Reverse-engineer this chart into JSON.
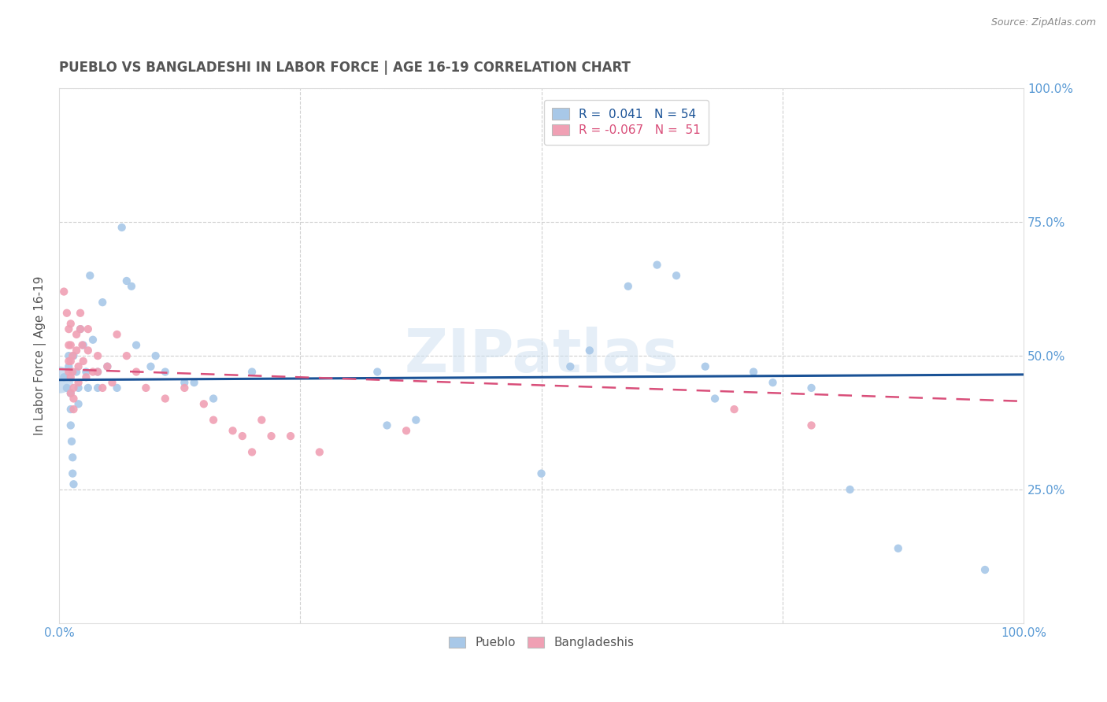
{
  "title": "PUEBLO VS BANGLADESHI IN LABOR FORCE | AGE 16-19 CORRELATION CHART",
  "source": "Source: ZipAtlas.com",
  "ylabel_label": "In Labor Force | Age 16-19",
  "xlim": [
    0.0,
    1.0
  ],
  "ylim": [
    0.0,
    1.0
  ],
  "xticks": [
    0.0,
    0.25,
    0.5,
    0.75,
    1.0
  ],
  "yticks": [
    0.0,
    0.25,
    0.5,
    0.75,
    1.0
  ],
  "xticklabels": [
    "0.0%",
    "",
    "",
    "",
    "100.0%"
  ],
  "right_yticklabels": [
    "",
    "25.0%",
    "50.0%",
    "75.0%",
    "100.0%"
  ],
  "legend_R_pueblo": "0.041",
  "legend_N_pueblo": "54",
  "legend_R_bangladeshi": "-0.067",
  "legend_N_bangladeshi": "51",
  "pueblo_color": "#a8c8e8",
  "bangladeshi_color": "#f0a0b4",
  "pueblo_line_color": "#1a5296",
  "bangladeshi_line_color": "#d94f7a",
  "watermark": "ZIPatlas",
  "background_color": "#ffffff",
  "grid_color": "#cccccc",
  "tick_color": "#5b9bd5",
  "title_color": "#555555",
  "pueblo_line_y0": 0.455,
  "pueblo_line_y1": 0.465,
  "bangla_line_y0": 0.475,
  "bangla_line_y1": 0.415,
  "pueblo_scatter": [
    [
      0.005,
      0.46
    ],
    [
      0.008,
      0.44
    ],
    [
      0.01,
      0.5
    ],
    [
      0.01,
      0.48
    ],
    [
      0.012,
      0.43
    ],
    [
      0.012,
      0.4
    ],
    [
      0.012,
      0.37
    ],
    [
      0.013,
      0.34
    ],
    [
      0.014,
      0.31
    ],
    [
      0.014,
      0.28
    ],
    [
      0.015,
      0.26
    ],
    [
      0.015,
      0.5
    ],
    [
      0.018,
      0.47
    ],
    [
      0.02,
      0.44
    ],
    [
      0.02,
      0.41
    ],
    [
      0.022,
      0.55
    ],
    [
      0.025,
      0.52
    ],
    [
      0.028,
      0.47
    ],
    [
      0.03,
      0.44
    ],
    [
      0.032,
      0.65
    ],
    [
      0.035,
      0.53
    ],
    [
      0.04,
      0.47
    ],
    [
      0.04,
      0.44
    ],
    [
      0.045,
      0.6
    ],
    [
      0.05,
      0.48
    ],
    [
      0.06,
      0.44
    ],
    [
      0.065,
      0.74
    ],
    [
      0.07,
      0.64
    ],
    [
      0.075,
      0.63
    ],
    [
      0.08,
      0.52
    ],
    [
      0.095,
      0.48
    ],
    [
      0.1,
      0.5
    ],
    [
      0.11,
      0.47
    ],
    [
      0.13,
      0.45
    ],
    [
      0.14,
      0.45
    ],
    [
      0.16,
      0.42
    ],
    [
      0.2,
      0.47
    ],
    [
      0.33,
      0.47
    ],
    [
      0.34,
      0.37
    ],
    [
      0.37,
      0.38
    ],
    [
      0.5,
      0.28
    ],
    [
      0.53,
      0.48
    ],
    [
      0.55,
      0.51
    ],
    [
      0.59,
      0.63
    ],
    [
      0.62,
      0.67
    ],
    [
      0.64,
      0.65
    ],
    [
      0.67,
      0.48
    ],
    [
      0.68,
      0.42
    ],
    [
      0.72,
      0.47
    ],
    [
      0.74,
      0.45
    ],
    [
      0.78,
      0.44
    ],
    [
      0.82,
      0.25
    ],
    [
      0.87,
      0.14
    ],
    [
      0.96,
      0.1
    ]
  ],
  "bangladeshi_scatter": [
    [
      0.005,
      0.62
    ],
    [
      0.008,
      0.58
    ],
    [
      0.01,
      0.55
    ],
    [
      0.01,
      0.52
    ],
    [
      0.01,
      0.49
    ],
    [
      0.01,
      0.47
    ],
    [
      0.012,
      0.56
    ],
    [
      0.012,
      0.52
    ],
    [
      0.012,
      0.49
    ],
    [
      0.012,
      0.46
    ],
    [
      0.012,
      0.43
    ],
    [
      0.014,
      0.5
    ],
    [
      0.014,
      0.47
    ],
    [
      0.015,
      0.44
    ],
    [
      0.015,
      0.42
    ],
    [
      0.015,
      0.4
    ],
    [
      0.018,
      0.54
    ],
    [
      0.018,
      0.51
    ],
    [
      0.02,
      0.48
    ],
    [
      0.02,
      0.45
    ],
    [
      0.022,
      0.58
    ],
    [
      0.022,
      0.55
    ],
    [
      0.024,
      0.52
    ],
    [
      0.025,
      0.49
    ],
    [
      0.028,
      0.46
    ],
    [
      0.03,
      0.55
    ],
    [
      0.03,
      0.51
    ],
    [
      0.035,
      0.47
    ],
    [
      0.04,
      0.5
    ],
    [
      0.04,
      0.47
    ],
    [
      0.045,
      0.44
    ],
    [
      0.05,
      0.48
    ],
    [
      0.055,
      0.45
    ],
    [
      0.06,
      0.54
    ],
    [
      0.07,
      0.5
    ],
    [
      0.08,
      0.47
    ],
    [
      0.09,
      0.44
    ],
    [
      0.11,
      0.42
    ],
    [
      0.13,
      0.44
    ],
    [
      0.15,
      0.41
    ],
    [
      0.16,
      0.38
    ],
    [
      0.18,
      0.36
    ],
    [
      0.19,
      0.35
    ],
    [
      0.2,
      0.32
    ],
    [
      0.21,
      0.38
    ],
    [
      0.22,
      0.35
    ],
    [
      0.24,
      0.35
    ],
    [
      0.27,
      0.32
    ],
    [
      0.36,
      0.36
    ],
    [
      0.7,
      0.4
    ],
    [
      0.78,
      0.37
    ]
  ]
}
